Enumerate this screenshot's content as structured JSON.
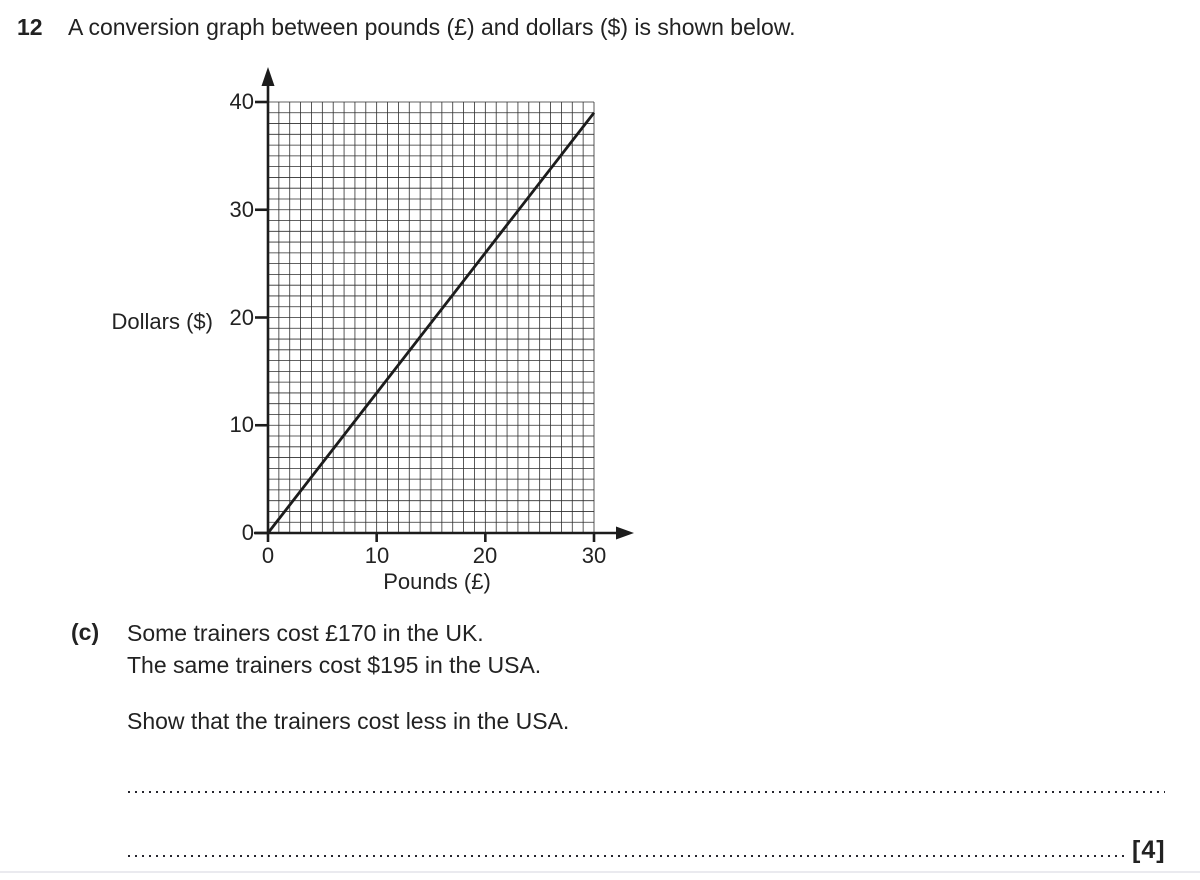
{
  "question": {
    "number": "12",
    "title": "A conversion graph between pounds (£) and dollars ($) is shown below."
  },
  "chart_data": {
    "type": "line",
    "title": "",
    "xlabel": "Pounds (£)",
    "ylabel": "Dollars ($)",
    "xlim": [
      0,
      30
    ],
    "ylim": [
      0,
      40
    ],
    "xticks": [
      0,
      10,
      20,
      30
    ],
    "yticks": [
      0,
      10,
      20,
      30,
      40
    ],
    "xtick_labels": [
      "0",
      "10",
      "20",
      "30"
    ],
    "ytick_labels_top_to_bottom": [
      "40",
      "30",
      "20",
      "10",
      "0"
    ],
    "minor_grid_step": 1,
    "grid": "on",
    "legend": "none",
    "series": [
      {
        "name": "pounds-to-dollars-conversion-line",
        "x": [
          0,
          30
        ],
        "y": [
          0,
          39
        ]
      }
    ]
  },
  "part_c": {
    "label": "(c)",
    "statement_line1": "Some trainers cost £170 in the UK.",
    "statement_line2": "The same trainers cost $195 in the USA.",
    "instruction": "Show that the trainers cost less in the USA.",
    "marks": "[4]"
  },
  "colors": {
    "ink": "#222222",
    "axis": "#1c1c1c",
    "grid_line": "#2e2e2e",
    "dotted_line": "#26262e"
  }
}
